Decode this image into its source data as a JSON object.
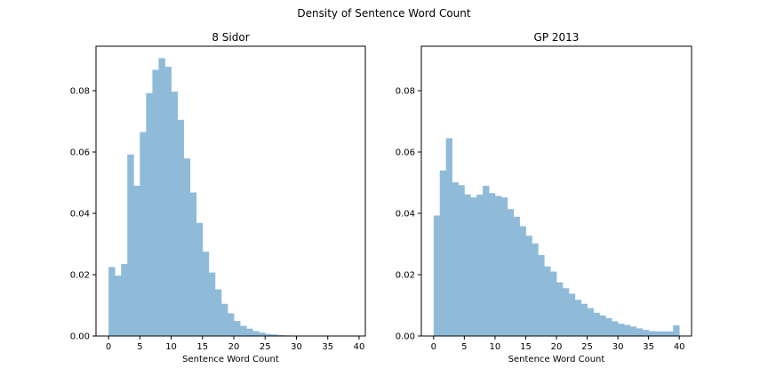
{
  "figure": {
    "suptitle": "Density of Sentence Word Count",
    "bar_color": "#8fbbd9",
    "axis_color": "#000000"
  },
  "chart_data": [
    {
      "type": "bar",
      "title": "8 Sidor",
      "xlabel": "Sentence Word Count",
      "ylabel": "",
      "xlim": [
        -2,
        41
      ],
      "ylim": [
        0,
        0.0945
      ],
      "xticks": [
        0,
        5,
        10,
        15,
        20,
        25,
        30,
        35,
        40
      ],
      "yticks": [
        0.0,
        0.02,
        0.04,
        0.06,
        0.08
      ],
      "ytick_labels": [
        "0.00",
        "0.02",
        "0.04",
        "0.06",
        "0.08"
      ],
      "bin_start": 0,
      "bin_width": 1,
      "values": [
        0.0225,
        0.0197,
        0.0235,
        0.0592,
        0.049,
        0.0665,
        0.0792,
        0.0868,
        0.0906,
        0.0878,
        0.0797,
        0.0705,
        0.0579,
        0.0468,
        0.0369,
        0.0275,
        0.0207,
        0.0152,
        0.0105,
        0.0074,
        0.0049,
        0.0033,
        0.0024,
        0.0016,
        0.0011,
        0.0007,
        0.0005,
        0.0003,
        0.0002,
        0.0001,
        0.0001,
        0.0001,
        0.0,
        0.0,
        0.0,
        0.0,
        0.0,
        0.0,
        0.0,
        0.0
      ]
    },
    {
      "type": "bar",
      "title": "GP 2013",
      "xlabel": "Sentence Word Count",
      "ylabel": "",
      "xlim": [
        -2,
        42
      ],
      "ylim": [
        0,
        0.0945
      ],
      "xticks": [
        0,
        5,
        10,
        15,
        20,
        25,
        30,
        35,
        40
      ],
      "yticks": [
        0.0,
        0.02,
        0.04,
        0.06,
        0.08
      ],
      "ytick_labels": [
        "0.00",
        "0.02",
        "0.04",
        "0.06",
        "0.08"
      ],
      "bin_start": 0,
      "bin_width": 1,
      "values": [
        0.0393,
        0.054,
        0.0645,
        0.0501,
        0.0492,
        0.0462,
        0.0452,
        0.0461,
        0.049,
        0.0466,
        0.0457,
        0.0452,
        0.0414,
        0.0389,
        0.0358,
        0.0327,
        0.0302,
        0.0264,
        0.0227,
        0.021,
        0.0175,
        0.0156,
        0.0138,
        0.0118,
        0.0105,
        0.0091,
        0.0076,
        0.0067,
        0.0058,
        0.0048,
        0.004,
        0.0036,
        0.0031,
        0.0025,
        0.002,
        0.0016,
        0.0015,
        0.0015,
        0.0015,
        0.0035
      ]
    }
  ]
}
